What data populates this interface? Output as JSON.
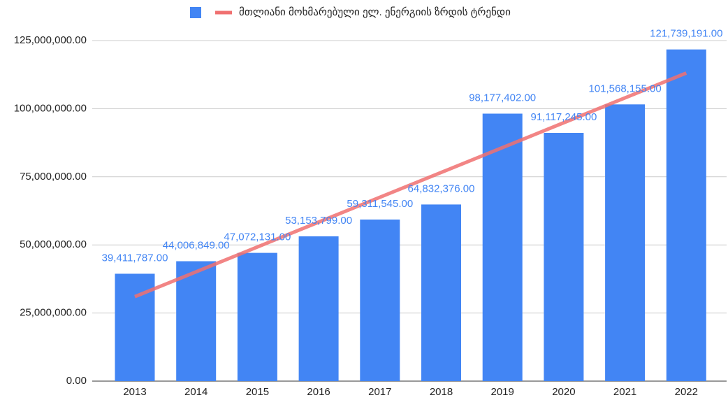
{
  "chart_data": {
    "type": "bar",
    "categories": [
      "2013",
      "2014",
      "2015",
      "2016",
      "2017",
      "2018",
      "2019",
      "2020",
      "2021",
      "2022"
    ],
    "values": [
      39411787,
      44006849,
      47072131,
      53153799,
      59311545,
      64832376,
      98177402,
      91117245,
      101568155,
      121739191
    ],
    "value_labels": [
      "39,411,787.00",
      "44,006,849.00",
      "47,072,131.00",
      "53,153,799.00",
      "59,311,545.00",
      "64,832,376.00",
      "98,177,402.00",
      "91,117,245.00",
      "101,568,155.00",
      "121,739,191.00"
    ],
    "color": "#4285f4",
    "trend": {
      "name": "მთლიანი მოხმარებული ელ. ენერგიის ზრდის ტრენდი",
      "color": "#f07070",
      "values": [
        31000000,
        40120000,
        49240000,
        58360000,
        67480000,
        76600000,
        85720000,
        94840000,
        103960000,
        113080000
      ]
    },
    "ylim": [
      0,
      125000000
    ],
    "yticks": [
      {
        "value": 0,
        "label": "0.00"
      },
      {
        "value": 25000000,
        "label": "25,000,000.00"
      },
      {
        "value": 50000000,
        "label": "50,000,000.00"
      },
      {
        "value": 75000000,
        "label": "75,000,000.00"
      },
      {
        "value": 100000000,
        "label": "100,000,000.00"
      },
      {
        "value": 125000000,
        "label": "125,000,000.00"
      }
    ],
    "grid": true,
    "legend": "top"
  }
}
